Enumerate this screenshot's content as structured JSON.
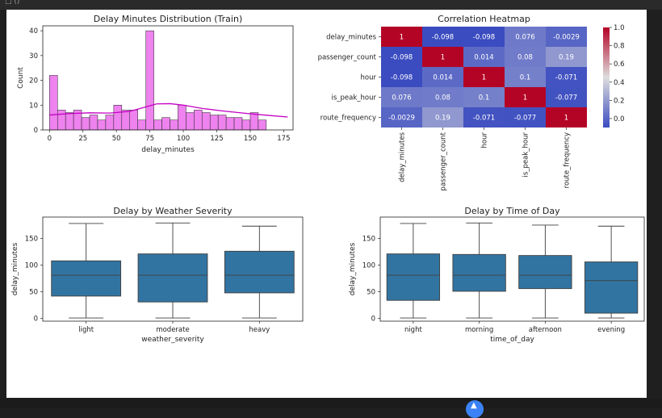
{
  "window": {
    "toolbar_text": "□  ()"
  },
  "chart_data": [
    {
      "id": "hist",
      "type": "histogram",
      "title": "Delay Minutes Distribution (Train)",
      "xlabel": "delay_minutes",
      "ylabel": "Count",
      "xlim": [
        -5,
        182
      ],
      "ylim": [
        0,
        42
      ],
      "xticks": [
        0,
        25,
        50,
        75,
        100,
        125,
        150,
        175
      ],
      "yticks": [
        0,
        10,
        20,
        30,
        40
      ],
      "bin_width": 6,
      "bin_start": 0,
      "counts": [
        22,
        8,
        7,
        8,
        5,
        6,
        4,
        6,
        10,
        8,
        8,
        4,
        40,
        4,
        5,
        4,
        10,
        7,
        8,
        7,
        6,
        6,
        5,
        5,
        4,
        7,
        4
      ],
      "kde_x": [
        0,
        15,
        30,
        45,
        60,
        70,
        80,
        90,
        100,
        115,
        130,
        150,
        165,
        178
      ],
      "kde_y": [
        6,
        6.6,
        6.9,
        6.8,
        7.5,
        9,
        10.5,
        10.6,
        10,
        8.6,
        7.6,
        6.5,
        5.8,
        5.2
      ],
      "bar_color": "#ee82ee",
      "kde_color": "#c400c4"
    },
    {
      "id": "heatmap",
      "type": "heatmap",
      "title": "Correlation Heatmap",
      "labels": [
        "delay_minutes",
        "passenger_count",
        "hour",
        "is_peak_hour",
        "route_frequency"
      ],
      "values": [
        [
          1,
          -0.098,
          -0.098,
          0.076,
          -0.0029
        ],
        [
          -0.098,
          1,
          0.014,
          0.08,
          0.19
        ],
        [
          -0.098,
          0.014,
          1,
          0.1,
          -0.071
        ],
        [
          0.076,
          0.08,
          0.1,
          1,
          -0.077
        ],
        [
          -0.0029,
          0.19,
          -0.071,
          -0.077,
          1
        ]
      ],
      "cell_labels": [
        [
          "1",
          "-0.098",
          "-0.098",
          "0.076",
          "-0.0029"
        ],
        [
          "-0.098",
          "1",
          "0.014",
          "0.08",
          "0.19"
        ],
        [
          "-0.098",
          "0.014",
          "1",
          "0.1",
          "-0.071"
        ],
        [
          "0.076",
          "0.08",
          "0.1",
          "1",
          "-0.077"
        ],
        [
          "-0.0029",
          "0.19",
          "-0.071",
          "-0.077",
          "1"
        ]
      ],
      "colorscale": "coolwarm",
      "vmin": -0.098,
      "vmax": 1,
      "colorbar_ticks": [
        0.0,
        0.2,
        0.4,
        0.6,
        0.8,
        1.0
      ],
      "colorbar_tick_labels": [
        "0.0",
        "0.2",
        "0.4",
        "0.6",
        "0.8",
        "1.0"
      ]
    },
    {
      "id": "weather",
      "type": "box",
      "title": "Delay by Weather Severity",
      "xlabel": "weather_severity",
      "ylabel": "delay_minutes",
      "ylim": [
        -5,
        190
      ],
      "yticks": [
        0,
        50,
        100,
        150
      ],
      "categories": [
        "light",
        "moderate",
        "heavy"
      ],
      "boxes": [
        {
          "min": 1,
          "q1": 42,
          "median": 81,
          "q3": 108,
          "max": 178
        },
        {
          "min": 1,
          "q1": 31,
          "median": 81,
          "q3": 121,
          "max": 179
        },
        {
          "min": 1,
          "q1": 48,
          "median": 81,
          "q3": 126,
          "max": 173
        }
      ],
      "box_color": "#3274a1"
    },
    {
      "id": "timeofday",
      "type": "box",
      "title": "Delay by Time of Day",
      "xlabel": "time_of_day",
      "ylabel": "delay_minutes",
      "ylim": [
        -5,
        190
      ],
      "yticks": [
        0,
        50,
        100,
        150
      ],
      "categories": [
        "night",
        "morning",
        "afternoon",
        "evening"
      ],
      "boxes": [
        {
          "min": 1,
          "q1": 34,
          "median": 81,
          "q3": 121,
          "max": 178
        },
        {
          "min": 1,
          "q1": 51,
          "median": 81,
          "q3": 120,
          "max": 179
        },
        {
          "min": 1,
          "q1": 56,
          "median": 81,
          "q3": 118,
          "max": 175
        },
        {
          "min": 1,
          "q1": 10,
          "median": 71,
          "q3": 106,
          "max": 173
        }
      ],
      "box_color": "#3274a1"
    }
  ]
}
